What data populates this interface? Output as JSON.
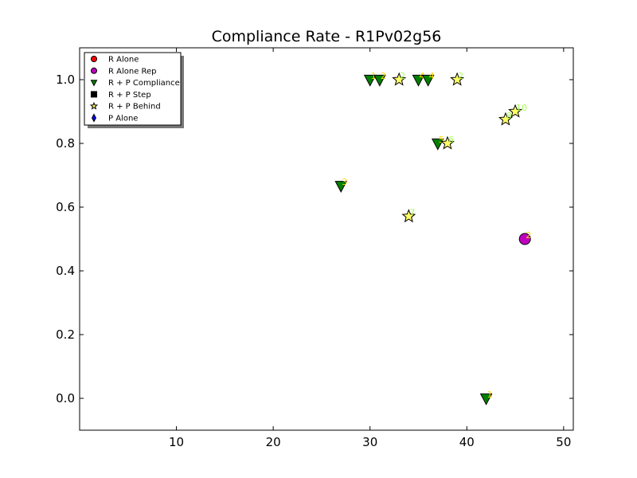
{
  "chart_data": {
    "type": "scatter",
    "title": "Compliance Rate  - R1Pv02g56",
    "xlabel": "",
    "ylabel": "",
    "xlim": [
      0,
      51
    ],
    "ylim": [
      -0.1,
      1.1
    ],
    "xticks": [
      10,
      20,
      30,
      40,
      50
    ],
    "yticks": [
      0.0,
      0.2,
      0.4,
      0.6,
      0.8,
      1.0
    ],
    "xtick_labels": [
      "10",
      "20",
      "30",
      "40",
      "50"
    ],
    "ytick_labels": [
      "0.0",
      "0.2",
      "0.4",
      "0.6",
      "0.8",
      "1.0"
    ],
    "grid": false,
    "legend_position": "top-left",
    "series": [
      {
        "name": "R Alone",
        "marker": "circle",
        "color": "#ff0000",
        "points": []
      },
      {
        "name": "R Alone Rep",
        "marker": "circle",
        "color": "#bf00bf",
        "label_color": "#ffd700",
        "points": [
          {
            "x": 46,
            "y": 0.5,
            "label": "2"
          }
        ]
      },
      {
        "name": "R + P Compliance",
        "marker": "triangle-down",
        "color": "#008000",
        "label_color": "#ffd700",
        "points": [
          {
            "x": 27,
            "y": 0.667,
            "label": "3"
          },
          {
            "x": 30,
            "y": 1.0,
            "label": "1"
          },
          {
            "x": 31,
            "y": 1.0,
            "label": "2"
          },
          {
            "x": 35,
            "y": 1.0,
            "label": "4"
          },
          {
            "x": 36,
            "y": 1.0,
            "label": "4"
          },
          {
            "x": 37,
            "y": 0.8,
            "label": "5"
          },
          {
            "x": 42,
            "y": 0.0,
            "label": "1"
          }
        ]
      },
      {
        "name": "R + P Step",
        "marker": "square",
        "color": "#000000",
        "points": []
      },
      {
        "name": "R + P Behind",
        "marker": "star",
        "color": "#ffff66",
        "label_color": "#aaff55",
        "points": [
          {
            "x": 33,
            "y": 1.0,
            "label": "2"
          },
          {
            "x": 34,
            "y": 0.571,
            "label": "7"
          },
          {
            "x": 38,
            "y": 0.8,
            "label": "6"
          },
          {
            "x": 39,
            "y": 1.0,
            "label": "2"
          },
          {
            "x": 44,
            "y": 0.875,
            "label": "8"
          },
          {
            "x": 45,
            "y": 0.9,
            "label": "10"
          }
        ]
      },
      {
        "name": "P Alone",
        "marker": "diamond",
        "color": "#0000ff",
        "points": []
      }
    ]
  }
}
